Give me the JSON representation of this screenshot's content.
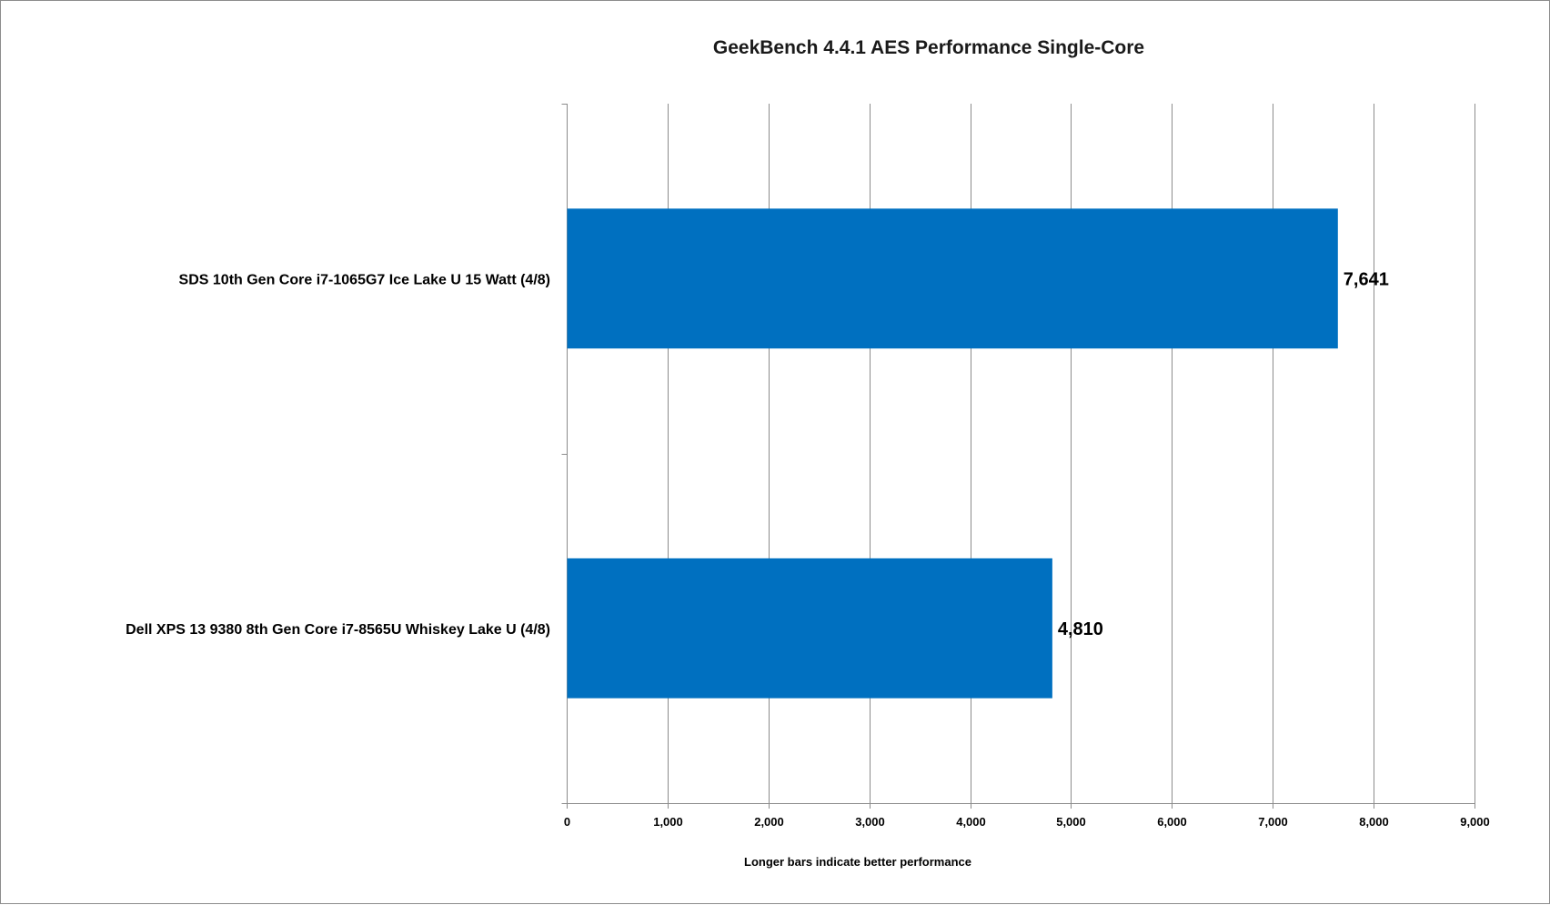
{
  "chart_data": {
    "type": "bar",
    "orientation": "horizontal",
    "title": "GeekBench 4.4.1 AES Performance Single-Core",
    "xlabel": "Longer bars indicate better performance",
    "ylabel": "",
    "categories": [
      "SDS 10th Gen Core i7-1065G7 Ice Lake U 15 Watt (4/8)",
      "Dell XPS 13 9380 8th Gen Core i7-8565U Whiskey Lake U (4/8)"
    ],
    "values": [
      7641,
      4810
    ],
    "value_labels": [
      "7,641",
      "4,810"
    ],
    "xlim": [
      0,
      9000
    ],
    "x_ticks": [
      0,
      1000,
      2000,
      3000,
      4000,
      5000,
      6000,
      7000,
      8000,
      9000
    ],
    "x_tick_labels": [
      "0",
      "1,000",
      "2,000",
      "3,000",
      "4,000",
      "5,000",
      "6,000",
      "7,000",
      "8,000",
      "9,000"
    ],
    "grid": "vertical",
    "legend": "none",
    "bar_color": "#0070c0",
    "grid_color": "#8c8c8c"
  }
}
